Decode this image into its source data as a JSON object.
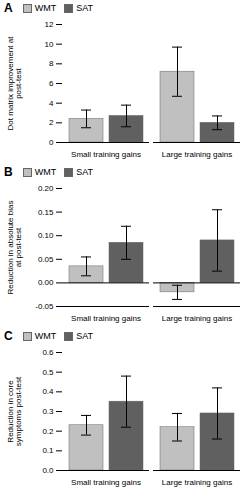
{
  "chart_data": [
    {
      "type": "bar",
      "title": "A",
      "ylabel": "Dot matrix improvement at post-test",
      "categories": [
        "Small training gains",
        "Large training gains"
      ],
      "series": [
        {
          "name": "WMT",
          "color": "#c0c0c0",
          "values": [
            2.4,
            7.2
          ],
          "errors": [
            0.9,
            2.5
          ]
        },
        {
          "name": "SAT",
          "color": "#606060",
          "values": [
            2.7,
            2.0
          ],
          "errors": [
            1.1,
            0.7
          ]
        }
      ],
      "ylim": [
        0,
        12
      ],
      "yticks": [
        0,
        2,
        4,
        6,
        8,
        10,
        12
      ],
      "legend": "upper left",
      "grid": false
    },
    {
      "type": "bar",
      "title": "B",
      "ylabel": "Reduction in absolute bias at post-test",
      "categories": [
        "Small training gains",
        "Large training gains"
      ],
      "series": [
        {
          "name": "WMT",
          "color": "#c0c0c0",
          "values": [
            0.035,
            -0.02
          ],
          "errors": [
            0.02,
            0.015
          ]
        },
        {
          "name": "SAT",
          "color": "#606060",
          "values": [
            0.085,
            0.09
          ],
          "errors": [
            0.035,
            0.065
          ]
        }
      ],
      "ylim": [
        -0.05,
        0.2
      ],
      "yticks": [
        -0.05,
        {
          "value": 0,
          "label": "0.00"
        },
        0.05,
        {
          "value": 0.1,
          "label": "0.10"
        },
        0.15,
        {
          "value": 0.2,
          "label": "0.20"
        }
      ],
      "legend": "upper left",
      "grid": false
    },
    {
      "type": "bar",
      "title": "C",
      "ylabel": "Reduction in core symptoms post-test",
      "categories": [
        "Small training gains",
        "Large training gains"
      ],
      "series": [
        {
          "name": "WMT",
          "color": "#c0c0c0",
          "values": [
            0.23,
            0.22
          ],
          "errors": [
            0.05,
            0.07
          ]
        },
        {
          "name": "SAT",
          "color": "#606060",
          "values": [
            0.35,
            0.29
          ],
          "errors": [
            0.13,
            0.13
          ]
        }
      ],
      "ylim": [
        0,
        0.6
      ],
      "yticks": [
        {
          "value": 0,
          "label": "0.0"
        },
        0.1,
        0.2,
        0.3,
        0.4,
        0.5,
        0.6
      ],
      "legend": "upper left",
      "grid": false
    }
  ]
}
